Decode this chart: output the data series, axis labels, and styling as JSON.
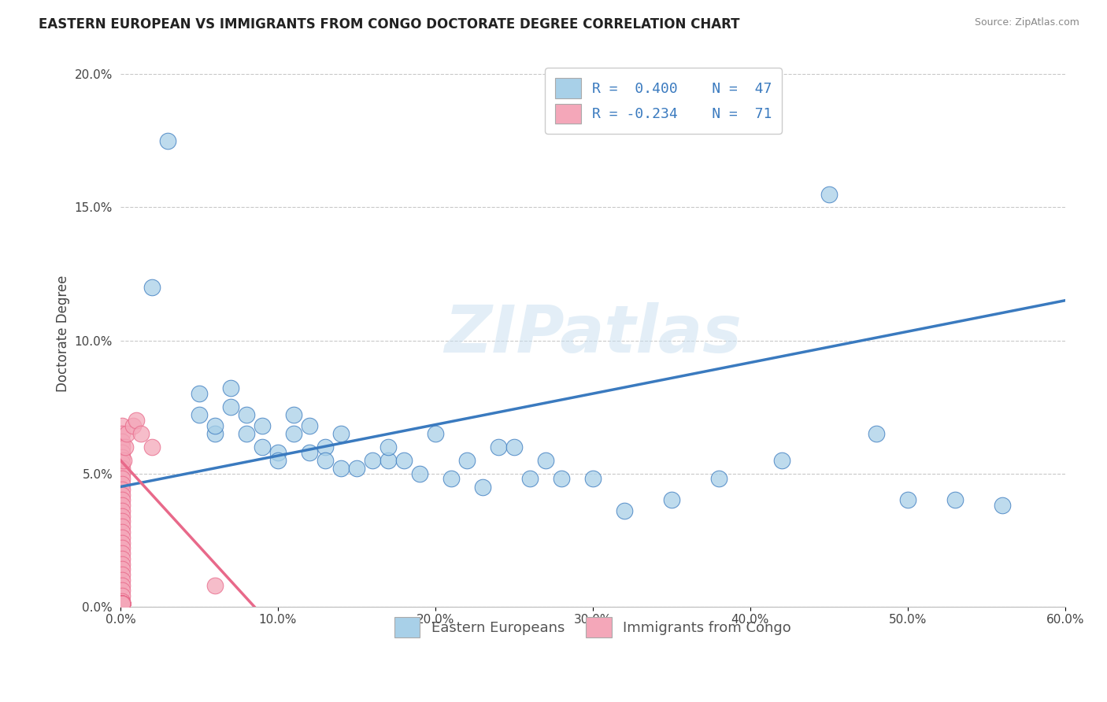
{
  "title": "EASTERN EUROPEAN VS IMMIGRANTS FROM CONGO DOCTORATE DEGREE CORRELATION CHART",
  "source_text": "Source: ZipAtlas.com",
  "ylabel": "Doctorate Degree",
  "xlim": [
    0.0,
    0.6
  ],
  "ylim": [
    0.0,
    0.205
  ],
  "xticks": [
    0.0,
    0.1,
    0.2,
    0.3,
    0.4,
    0.5,
    0.6
  ],
  "xticklabels": [
    "0.0%",
    "10.0%",
    "20.0%",
    "30.0%",
    "40.0%",
    "50.0%",
    "60.0%"
  ],
  "yticks": [
    0.0,
    0.05,
    0.1,
    0.15,
    0.2
  ],
  "yticklabels": [
    "0.0%",
    "5.0%",
    "10.0%",
    "15.0%",
    "20.0%"
  ],
  "blue_R": 0.4,
  "blue_N": 47,
  "pink_R": -0.234,
  "pink_N": 71,
  "blue_color": "#a8d0e8",
  "pink_color": "#f4a7b9",
  "blue_line_color": "#3a7abf",
  "pink_line_color": "#e8698a",
  "watermark": "ZIPatlas",
  "legend_label_blue": "Eastern Europeans",
  "legend_label_pink": "Immigrants from Congo",
  "blue_scatter_x": [
    0.02,
    0.03,
    0.05,
    0.05,
    0.06,
    0.06,
    0.07,
    0.07,
    0.08,
    0.08,
    0.09,
    0.09,
    0.1,
    0.1,
    0.11,
    0.11,
    0.12,
    0.12,
    0.13,
    0.13,
    0.14,
    0.14,
    0.15,
    0.16,
    0.17,
    0.17,
    0.18,
    0.19,
    0.2,
    0.21,
    0.22,
    0.23,
    0.24,
    0.25,
    0.26,
    0.27,
    0.28,
    0.3,
    0.32,
    0.35,
    0.38,
    0.42,
    0.45,
    0.48,
    0.5,
    0.53,
    0.56
  ],
  "blue_scatter_y": [
    0.12,
    0.175,
    0.08,
    0.072,
    0.065,
    0.068,
    0.082,
    0.075,
    0.065,
    0.072,
    0.06,
    0.068,
    0.058,
    0.055,
    0.072,
    0.065,
    0.068,
    0.058,
    0.06,
    0.055,
    0.065,
    0.052,
    0.052,
    0.055,
    0.055,
    0.06,
    0.055,
    0.05,
    0.065,
    0.048,
    0.055,
    0.045,
    0.06,
    0.06,
    0.048,
    0.055,
    0.048,
    0.048,
    0.036,
    0.04,
    0.048,
    0.055,
    0.155,
    0.065,
    0.04,
    0.04,
    0.038
  ],
  "pink_scatter_x": [
    0.001,
    0.001,
    0.001,
    0.001,
    0.001,
    0.001,
    0.001,
    0.001,
    0.001,
    0.001,
    0.001,
    0.001,
    0.001,
    0.001,
    0.001,
    0.001,
    0.001,
    0.001,
    0.001,
    0.001,
    0.001,
    0.001,
    0.001,
    0.001,
    0.001,
    0.001,
    0.001,
    0.001,
    0.001,
    0.001,
    0.001,
    0.001,
    0.001,
    0.001,
    0.001,
    0.001,
    0.001,
    0.001,
    0.001,
    0.001,
    0.001,
    0.001,
    0.001,
    0.001,
    0.001,
    0.001,
    0.001,
    0.001,
    0.001,
    0.001,
    0.001,
    0.001,
    0.001,
    0.001,
    0.001,
    0.001,
    0.001,
    0.001,
    0.001,
    0.001,
    0.001,
    0.001,
    0.001,
    0.002,
    0.003,
    0.004,
    0.008,
    0.01,
    0.013,
    0.02,
    0.06
  ],
  "pink_scatter_y": [
    0.068,
    0.065,
    0.062,
    0.06,
    0.058,
    0.056,
    0.054,
    0.052,
    0.05,
    0.048,
    0.046,
    0.044,
    0.042,
    0.04,
    0.038,
    0.036,
    0.034,
    0.032,
    0.03,
    0.028,
    0.026,
    0.024,
    0.022,
    0.02,
    0.018,
    0.016,
    0.014,
    0.012,
    0.01,
    0.008,
    0.006,
    0.004,
    0.002,
    0.001,
    0.001,
    0.001,
    0.001,
    0.001,
    0.001,
    0.001,
    0.001,
    0.001,
    0.001,
    0.001,
    0.001,
    0.001,
    0.001,
    0.001,
    0.001,
    0.001,
    0.001,
    0.001,
    0.001,
    0.001,
    0.001,
    0.001,
    0.001,
    0.001,
    0.001,
    0.001,
    0.001,
    0.001,
    0.001,
    0.055,
    0.06,
    0.065,
    0.068,
    0.07,
    0.065,
    0.06,
    0.008
  ]
}
